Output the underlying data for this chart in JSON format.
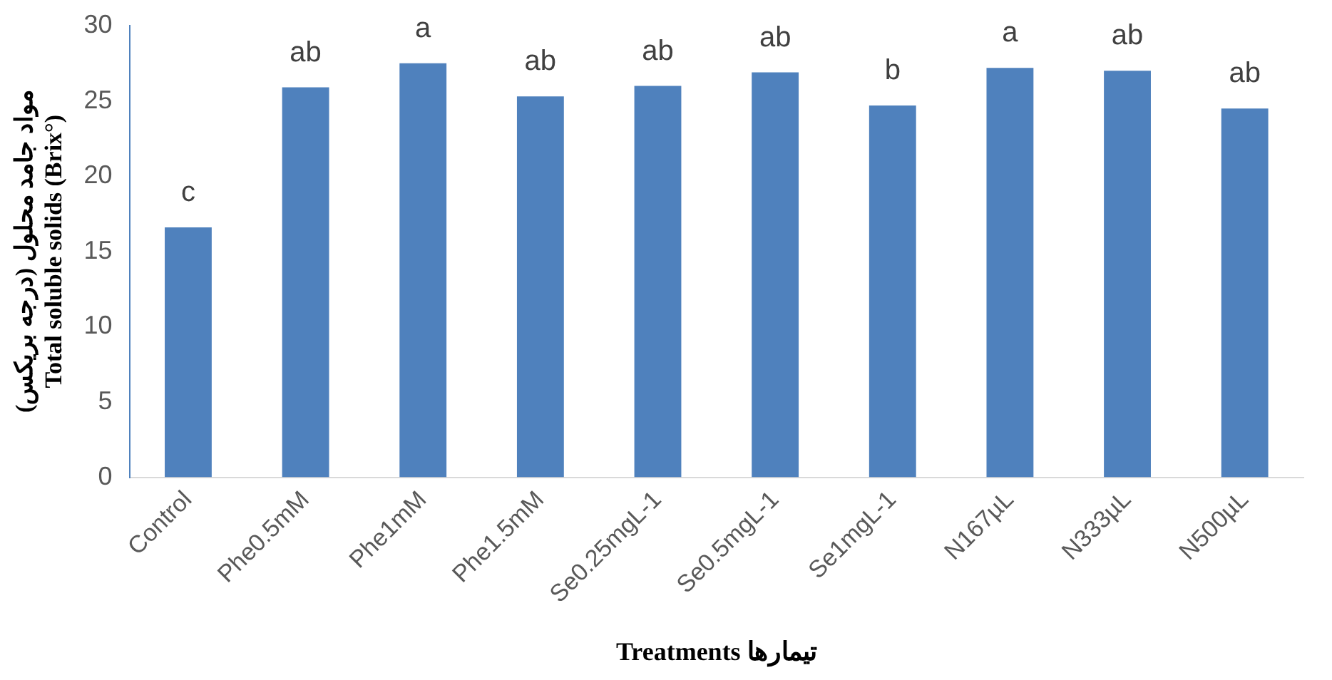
{
  "chart_data": {
    "type": "bar",
    "xlabel": "Treatments تیمارها",
    "ylabel": "مواد جامد محلول (درجه بریکس)\nTotal soluble solids (Brix°)",
    "categories": [
      "Control",
      "Phe0.5mM",
      "Phe1mM",
      "Phe1.5mM",
      "Se0.25mgL-1",
      "Se0.5mgL-1",
      "Se1mgL-1",
      "N167µL",
      "N333µL",
      "N500µL"
    ],
    "values": [
      16.6,
      25.9,
      27.5,
      25.3,
      26.0,
      26.9,
      24.7,
      27.2,
      27.0,
      24.5
    ],
    "color": "#4f81bd",
    "ylim": [
      0,
      30
    ],
    "yticks": [
      0,
      5,
      10,
      15,
      20,
      25,
      30
    ],
    "grid": false,
    "legend": false,
    "annotations": [
      {
        "text": "c",
        "x": "Control",
        "y": 16.6
      },
      {
        "text": "ab",
        "x": "Phe0.5mM",
        "y": 25.9
      },
      {
        "text": "a",
        "x": "Phe1mM",
        "y": 27.5
      },
      {
        "text": "ab",
        "x": "Phe1.5mM",
        "y": 25.3
      },
      {
        "text": "ab",
        "x": "Se0.25mgL-1",
        "y": 26.0
      },
      {
        "text": "ab",
        "x": "Se0.5mgL-1",
        "y": 26.9
      },
      {
        "text": "b",
        "x": "Se1mgL-1",
        "y": 24.7
      },
      {
        "text": "a",
        "x": "N167µL",
        "y": 27.2
      },
      {
        "text": "ab",
        "x": "N333µL",
        "y": 27.0
      },
      {
        "text": "ab",
        "x": "N500µL",
        "y": 24.5
      }
    ]
  }
}
